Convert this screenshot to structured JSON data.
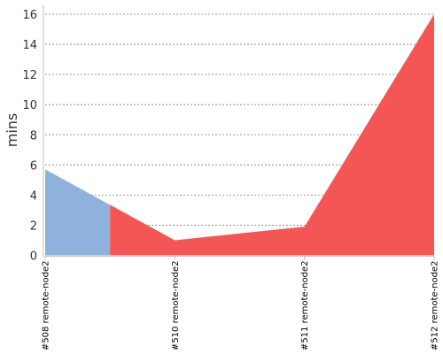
{
  "chart_data": {
    "type": "area",
    "title": "",
    "xlabel": "",
    "ylabel": "mins",
    "categories": [
      "#508 remote-node2",
      "#510 remote-node2",
      "#511 remote-node2",
      "#512 remote-node2"
    ],
    "x": [
      0,
      1,
      2,
      3
    ],
    "y": [
      5.7,
      1.0,
      1.9,
      16.0
    ],
    "ylim": [
      0,
      16.5
    ],
    "yticks": [
      0,
      2,
      4,
      6,
      8,
      10,
      12,
      14,
      16
    ],
    "grid": true,
    "legend": "none",
    "segments": [
      {
        "status": "success",
        "color": "#8eb2dc",
        "x_range": [
          0,
          0.5
        ]
      },
      {
        "status": "failure",
        "color": "#f45555",
        "x_range": [
          0.5,
          3
        ]
      }
    ]
  }
}
